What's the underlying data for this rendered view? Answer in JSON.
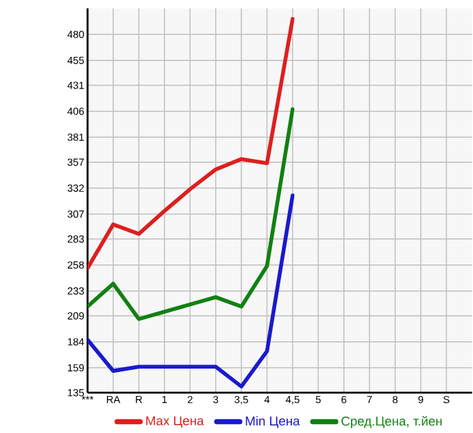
{
  "chart_data": {
    "type": "line",
    "categories": [
      "***",
      "RA",
      "R",
      "1",
      "2",
      "3",
      "3,5",
      "4",
      "4,5",
      "5",
      "6",
      "7",
      "8",
      "9",
      "S"
    ],
    "series": [
      {
        "name": "Max Цена",
        "color": "#dd1f1f",
        "values": [
          255,
          297,
          288,
          310,
          331,
          350,
          360,
          356,
          495,
          null,
          null,
          null,
          null,
          null,
          null
        ]
      },
      {
        "name": "Min Цена",
        "color": "#1a1acc",
        "values": [
          186,
          156,
          160,
          160,
          160,
          160,
          141,
          175,
          325,
          null,
          null,
          null,
          null,
          null,
          null
        ]
      },
      {
        "name": "Сред.Цена, т.йен",
        "color": "#128012",
        "values": [
          218,
          240,
          206,
          213,
          220,
          227,
          218,
          257,
          408,
          null,
          null,
          null,
          null,
          null,
          null
        ]
      }
    ],
    "ylim": [
      135,
      505
    ],
    "yticks": [
      135,
      159,
      184,
      209,
      233,
      258,
      283,
      307,
      332,
      357,
      381,
      406,
      431,
      455,
      480
    ],
    "grid": true,
    "legend": "bottom",
    "marker": "none",
    "line_style": "solid"
  }
}
